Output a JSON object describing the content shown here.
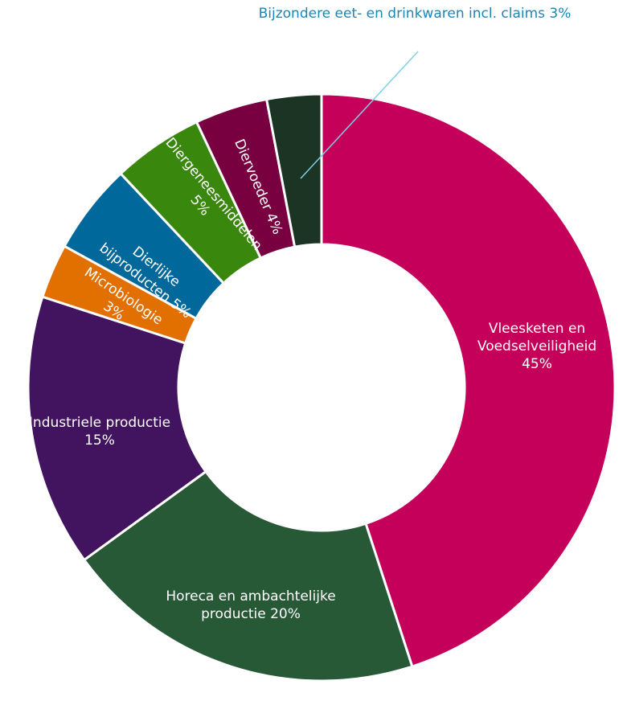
{
  "chart_data": {
    "type": "pie",
    "variant": "donut",
    "title": "",
    "slices": [
      {
        "label": "Vleesketen en Voedselveiligheid 45%",
        "lines": [
          "Vleesketen en",
          "Voedselveiligheid",
          "45%"
        ],
        "value": 45,
        "color": "#c5005a"
      },
      {
        "label": "Horeca en ambachtelijke productie 20%",
        "lines": [
          "Horeca en ambachtelijke",
          "productie 20%"
        ],
        "value": 20,
        "color": "#275937"
      },
      {
        "label": "Industriele productie 15%",
        "lines": [
          "Industriele productie",
          "15%"
        ],
        "value": 15,
        "color": "#42145f"
      },
      {
        "label": "Microbiologie 3%",
        "lines": [
          "Microbiologie",
          "3%"
        ],
        "value": 3,
        "color": "#e17000"
      },
      {
        "label": "Dierlijke bijproducten 5%",
        "lines": [
          "Dierlijke",
          "bijproducten 5%"
        ],
        "value": 5,
        "color": "#01689b"
      },
      {
        "label": "Diergeneesmiddelen 5%",
        "lines": [
          "Diergeneesmiddelen",
          "5%"
        ],
        "value": 5,
        "color": "#39870c"
      },
      {
        "label": "Diervoeder 4%",
        "lines": [
          "Diervoeder 4%"
        ],
        "value": 4,
        "color": "#780040"
      },
      {
        "label": "Bijzondere eet- en drinkwaren incl. claims 3%",
        "lines": [
          "Bijzondere eet- en drinkwaren incl. claims 3%"
        ],
        "value": 3,
        "color": "#1c3424",
        "external": true
      }
    ]
  }
}
